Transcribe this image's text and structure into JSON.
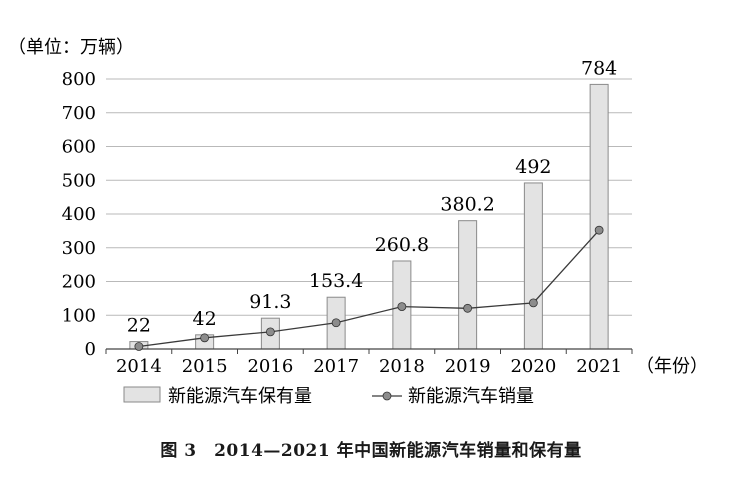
{
  "chart_data": {
    "type": "bar+line",
    "unit_label": "（单位：万辆）",
    "xlabel": "（年份）",
    "categories": [
      "2014",
      "2015",
      "2016",
      "2017",
      "2018",
      "2019",
      "2020",
      "2021"
    ],
    "ylim": [
      0,
      800
    ],
    "yticks": [
      0,
      100,
      200,
      300,
      400,
      500,
      600,
      700,
      800
    ],
    "grid": true,
    "legend_position": "bottom",
    "series": [
      {
        "name": "新能源汽车保有量",
        "kind": "bar",
        "values": [
          22,
          42,
          91.3,
          153.4,
          260.8,
          380.2,
          492,
          784
        ],
        "labels": [
          "22",
          "42",
          "91.3",
          "153.4",
          "260.8",
          "380.2",
          "492",
          "784"
        ],
        "color": "#e3e3e3"
      },
      {
        "name": "新能源汽车销量",
        "kind": "line",
        "values": [
          7.5,
          33.1,
          50.7,
          77.7,
          125.6,
          120.6,
          136.7,
          352.1
        ],
        "color": "#3a3a3a",
        "marker_color": "#8c8c8c"
      }
    ]
  },
  "caption": "图 3　2014—2021 年中国新能源汽车销量和保有量"
}
